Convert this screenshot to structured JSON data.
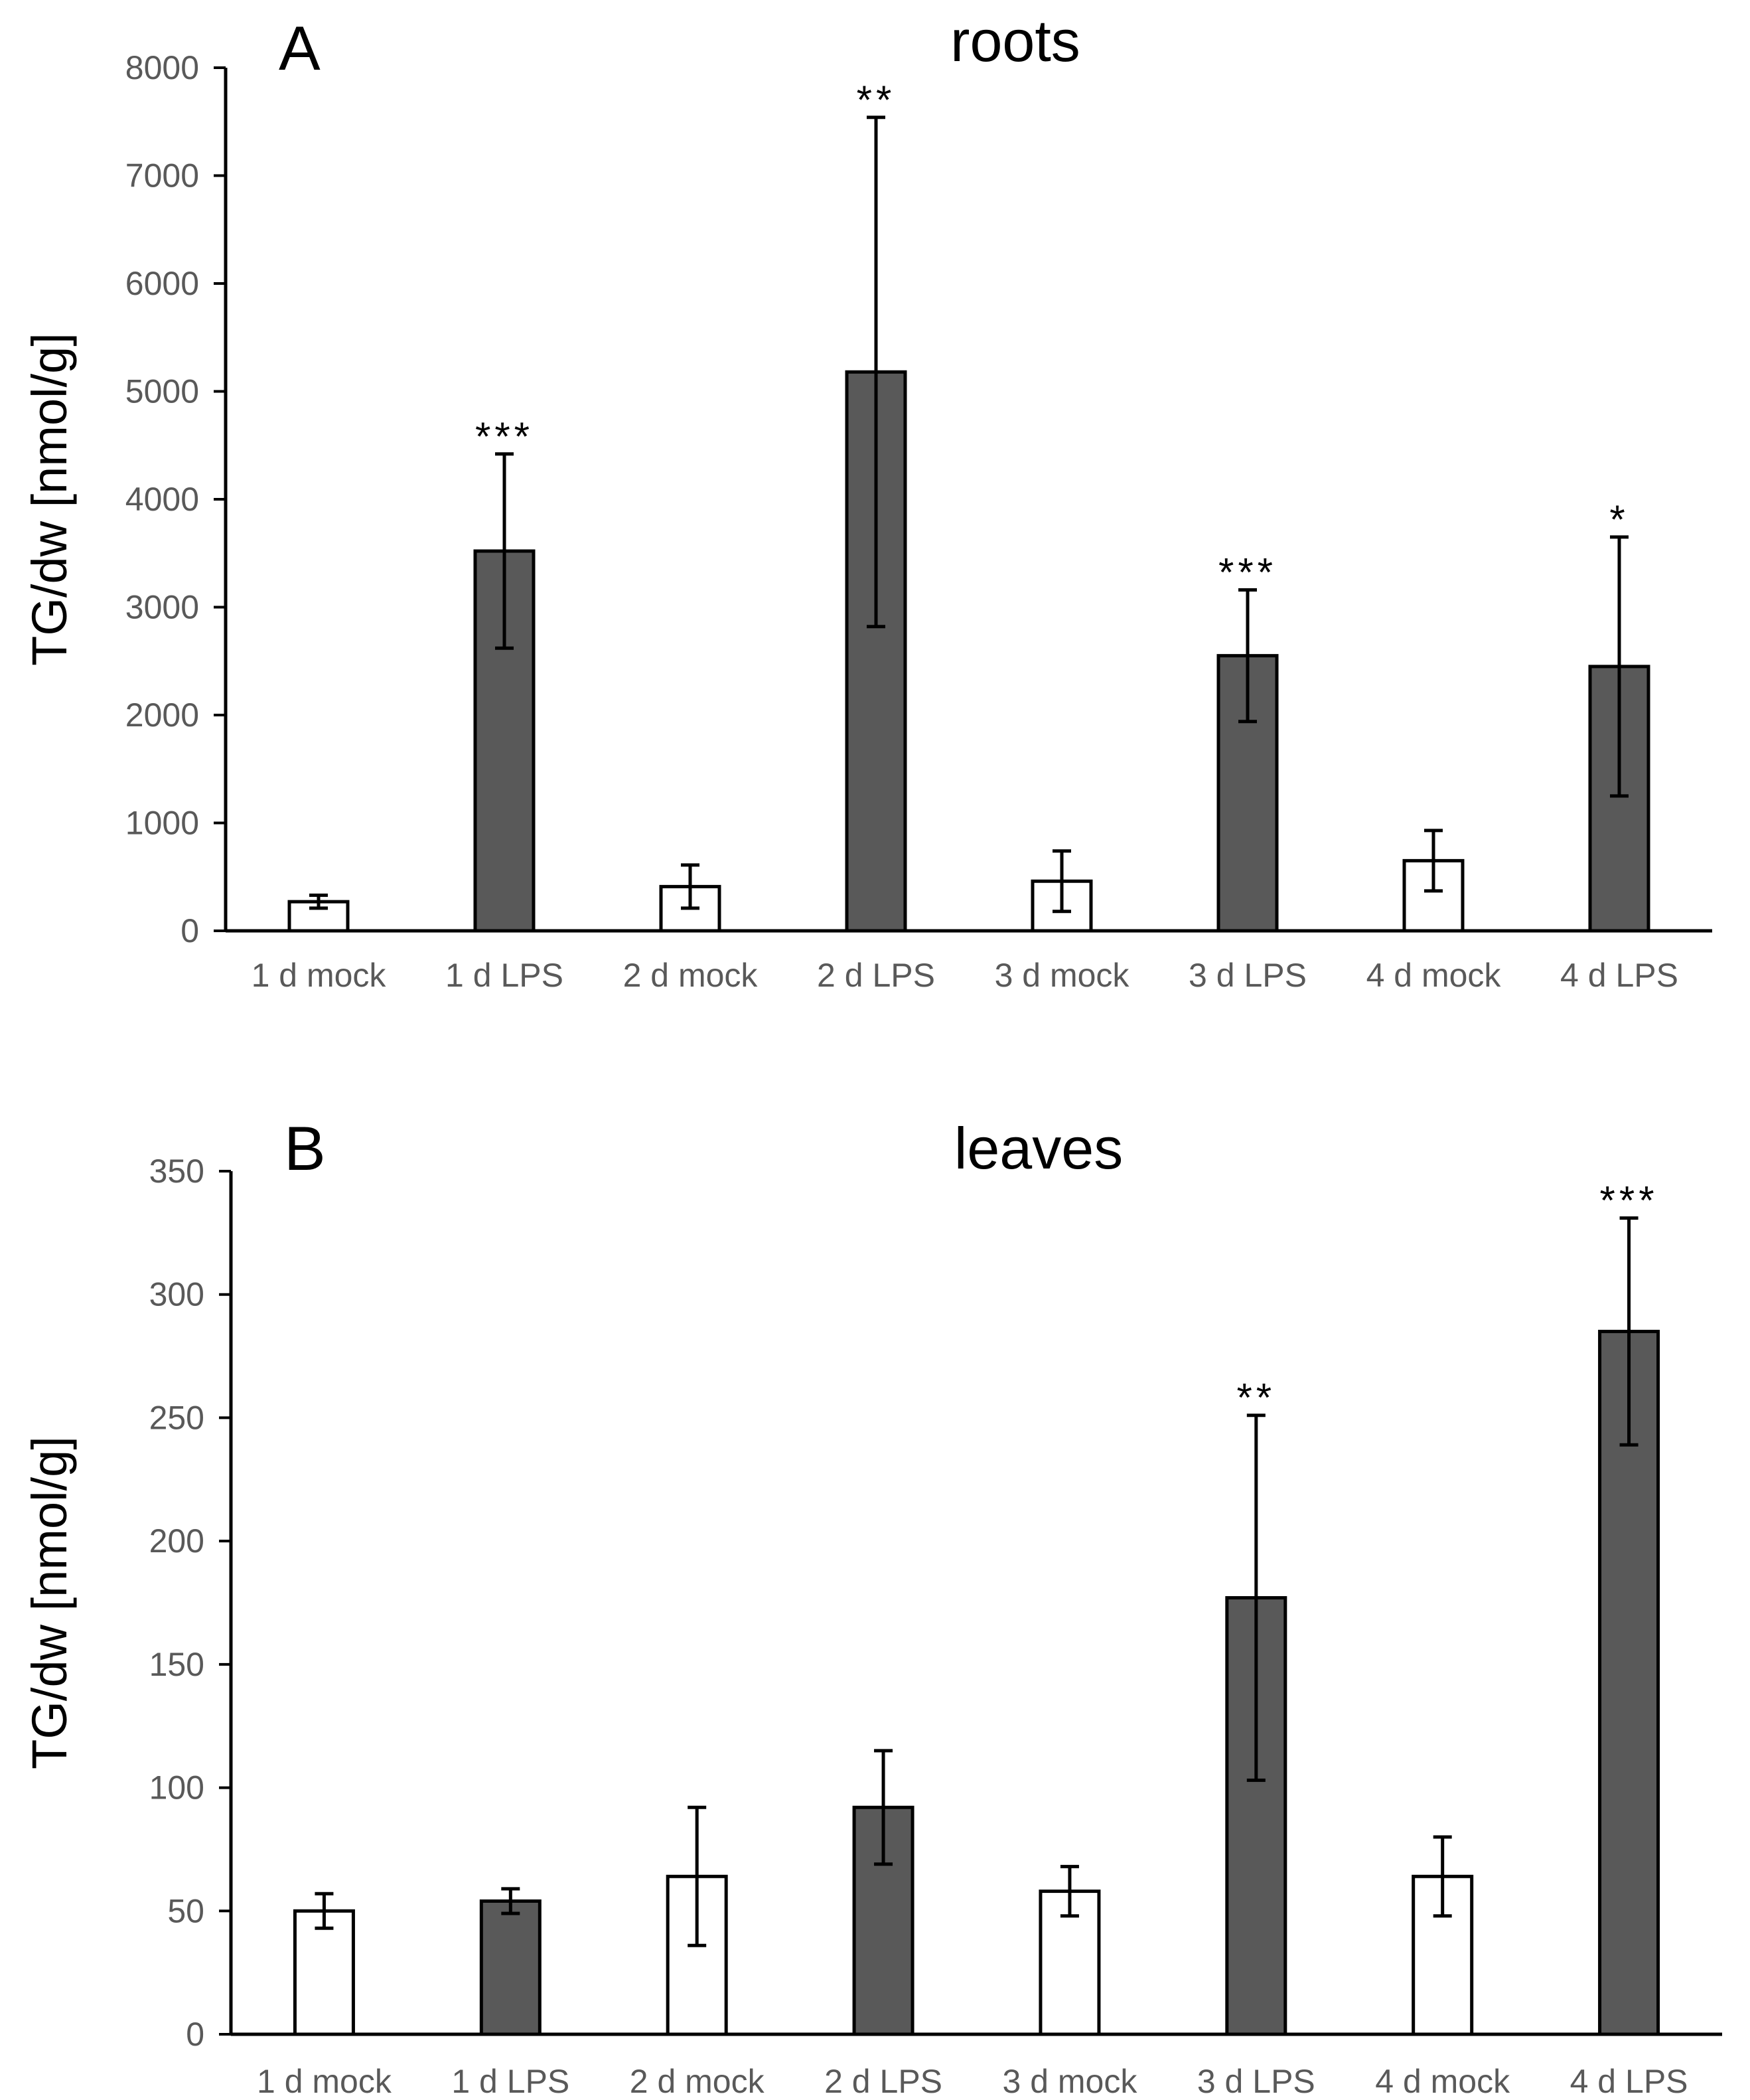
{
  "chart_data": [
    {
      "type": "bar",
      "panel_label": "A",
      "title": "roots",
      "ylabel": "TG/dw [nmol/g]",
      "xlabel": "",
      "ylim": [
        0,
        8000
      ],
      "yticks": [
        "0",
        "1000",
        "2000",
        "3000",
        "4000",
        "5000",
        "6000",
        "7000",
        "8000"
      ],
      "ytick_values": [
        0,
        1000,
        2000,
        3000,
        4000,
        5000,
        6000,
        7000,
        8000
      ],
      "categories": [
        "1 d mock",
        "1 d LPS",
        "2 d mock",
        "2 d LPS",
        "3 d mock",
        "3 d LPS",
        "4 d mock",
        "4 d LPS"
      ],
      "values": [
        270,
        3520,
        410,
        5180,
        460,
        2550,
        650,
        2450
      ],
      "errors": [
        60,
        900,
        200,
        2360,
        280,
        610,
        280,
        1200
      ],
      "significance": [
        "",
        "***",
        "",
        "**",
        "",
        "***",
        "",
        "*"
      ],
      "colors": {
        "mock": "#ffffff",
        "LPS": "#595959",
        "outline": "#000000"
      }
    },
    {
      "type": "bar",
      "panel_label": "B",
      "title": "leaves",
      "ylabel": "TG/dw [nmol/g]",
      "xlabel": "",
      "ylim": [
        0,
        350
      ],
      "yticks": [
        "0",
        "50",
        "100",
        "150",
        "200",
        "250",
        "300",
        "350"
      ],
      "ytick_values": [
        0,
        50,
        100,
        150,
        200,
        250,
        300,
        350
      ],
      "categories": [
        "1 d mock",
        "1 d LPS",
        "2 d mock",
        "2 d LPS",
        "3 d mock",
        "3 d LPS",
        "4 d mock",
        "4 d LPS"
      ],
      "values": [
        50,
        54,
        64,
        92,
        58,
        177,
        64,
        285
      ],
      "errors": [
        7,
        5,
        28,
        23,
        10,
        74,
        16,
        46
      ],
      "significance": [
        "",
        "",
        "",
        "",
        "",
        "**",
        "",
        "***"
      ],
      "colors": {
        "mock": "#ffffff",
        "LPS": "#595959",
        "outline": "#000000"
      }
    }
  ]
}
